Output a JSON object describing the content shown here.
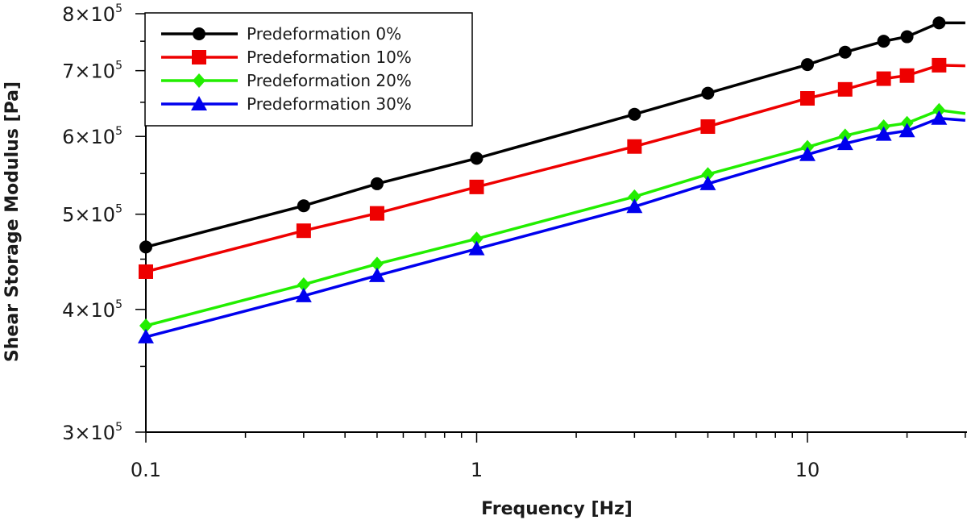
{
  "chart_data": {
    "type": "line",
    "title": "",
    "xlabel": "Frequency [Hz]",
    "ylabel": "Shear Storage Modulus [Pa]",
    "xscale": "log",
    "yscale": "log",
    "xlim": [
      0.1,
      30
    ],
    "ylim": [
      300000,
      800000
    ],
    "x_tick_labels": [
      "0.1",
      "1",
      "10"
    ],
    "y_tick_labels": [
      {
        "mantissa": "3×10",
        "exp": "5"
      },
      {
        "mantissa": "4×10",
        "exp": "5"
      },
      {
        "mantissa": "5×10",
        "exp": "5"
      },
      {
        "mantissa": "6×10",
        "exp": "5"
      },
      {
        "mantissa": "7×10",
        "exp": "5"
      },
      {
        "mantissa": "8×10",
        "exp": "5"
      }
    ],
    "grid": false,
    "legend_position": "top-left",
    "x": [
      0.1,
      0.3,
      0.5,
      1,
      3,
      5,
      10,
      13,
      17,
      20,
      25,
      30
    ],
    "series": [
      {
        "name": "Predeformation 0%",
        "color": "#000000",
        "marker": "circle",
        "values": [
          463000,
          510000,
          537000,
          570000,
          632000,
          664000,
          710000,
          731000,
          750000,
          758000,
          783000,
          783000
        ]
      },
      {
        "name": "Predeformation 10%",
        "color": "#ee0000",
        "marker": "square",
        "values": [
          437000,
          481000,
          501000,
          533000,
          586000,
          614000,
          656000,
          670000,
          687000,
          692000,
          709000,
          708000
        ]
      },
      {
        "name": "Predeformation 20%",
        "color": "#22ee00",
        "marker": "diamond",
        "values": [
          385000,
          424000,
          445000,
          472000,
          521000,
          549000,
          585000,
          601000,
          614000,
          619000,
          638000,
          633000
        ]
      },
      {
        "name": "Predeformation 30%",
        "color": "#0000ee",
        "marker": "triangle",
        "values": [
          375000,
          413000,
          433000,
          461000,
          509000,
          537000,
          575000,
          590000,
          603000,
          608000,
          626000,
          623000
        ]
      }
    ]
  }
}
